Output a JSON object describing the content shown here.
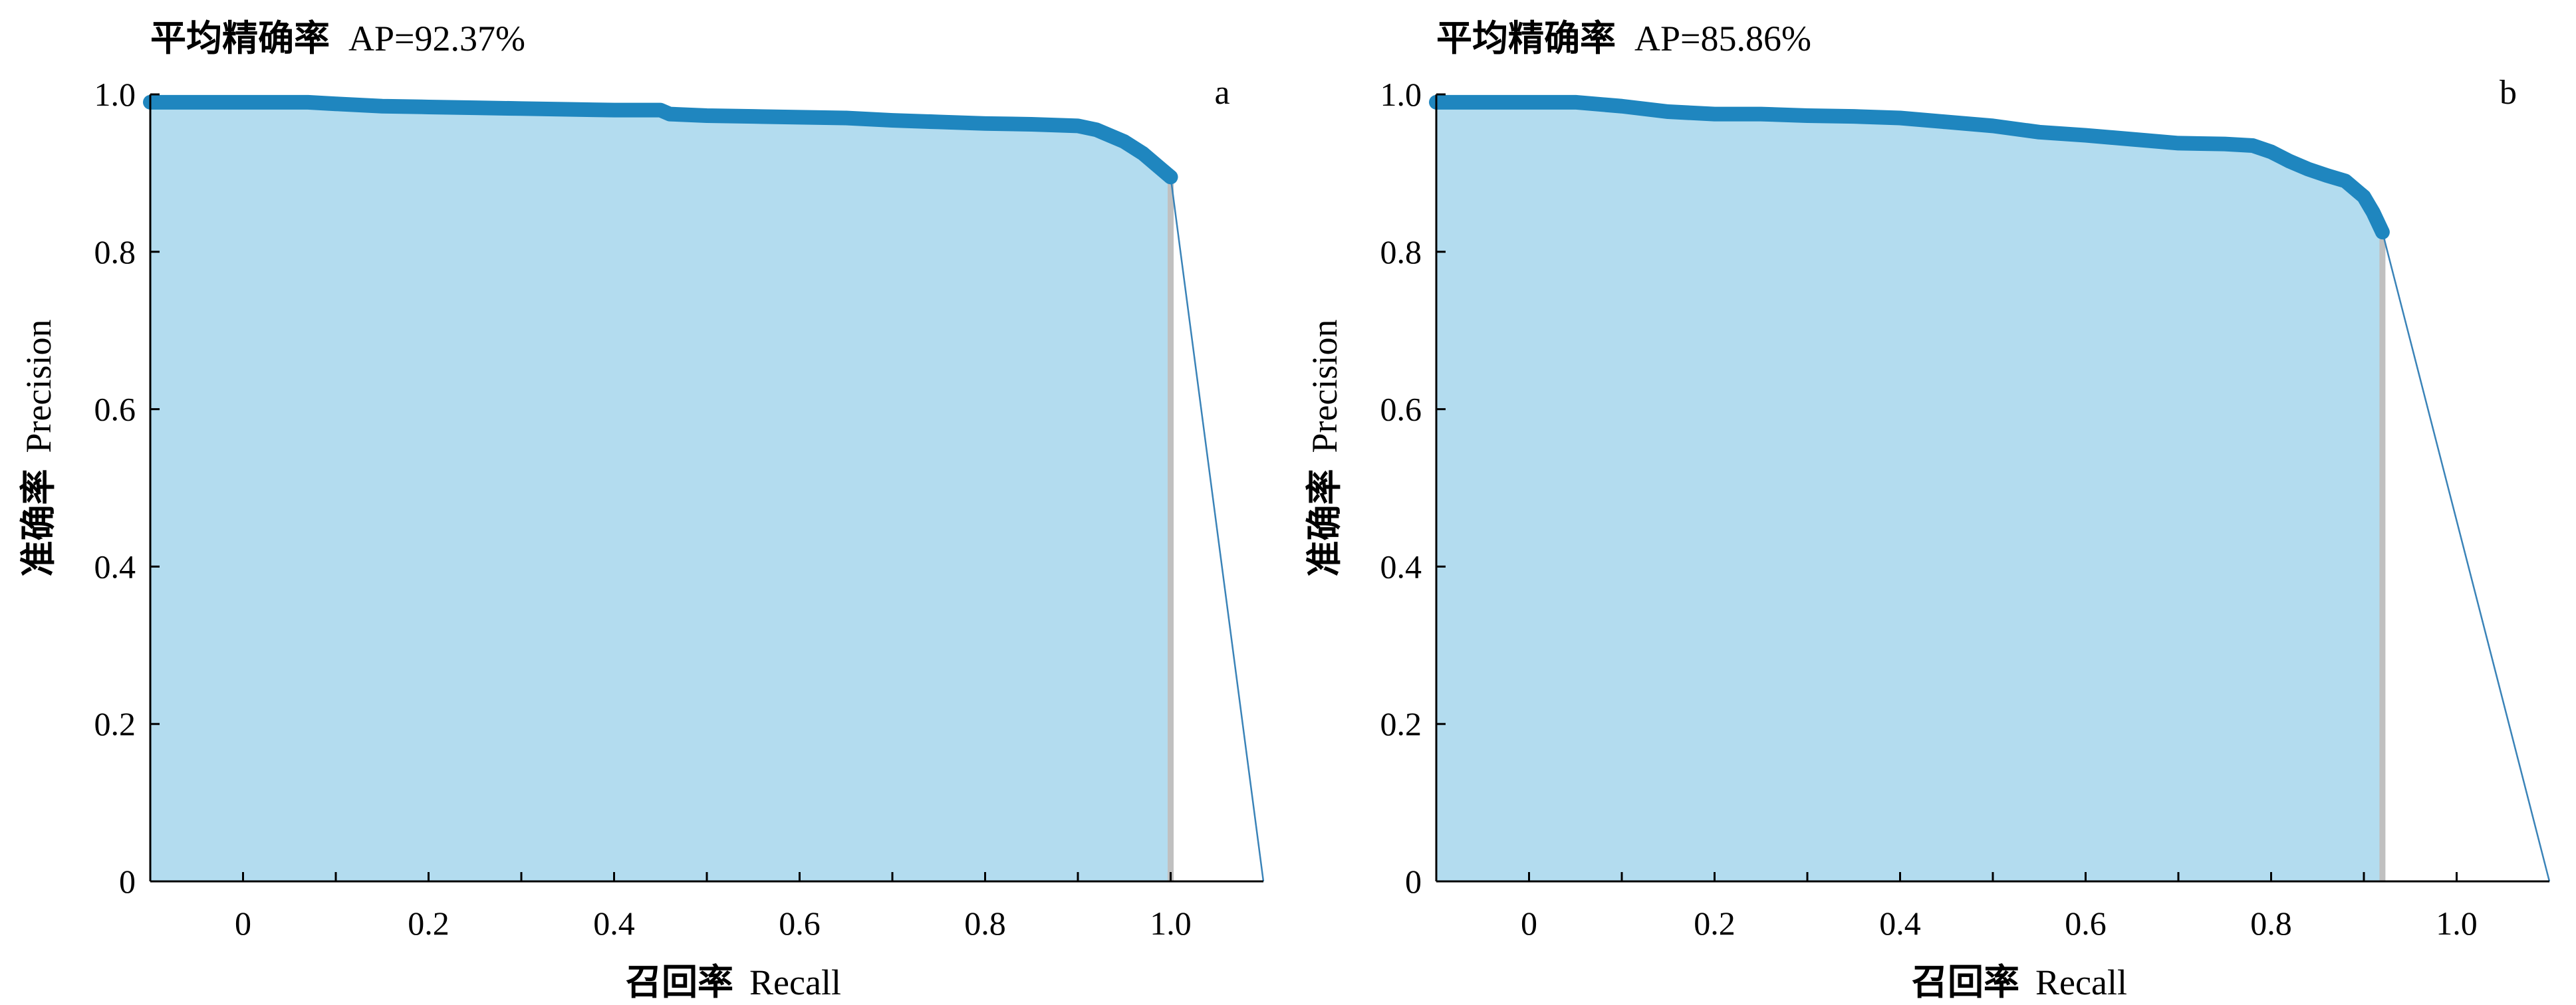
{
  "colors": {
    "curve": "#1f86bf",
    "fill": "#b3dcef",
    "drop_line": "#c0c0c0",
    "connector": "#3a83b8"
  },
  "chart_data": [
    {
      "type": "area",
      "title_cn": "平均精确率",
      "title_value": "AP=92.37%",
      "panel_label": "a",
      "xlabel_cn": "召回率",
      "xlabel_en": "Recall",
      "ylabel_cn": "准确率",
      "ylabel_en": "Precision",
      "xlim": [
        -0.1,
        1.1
      ],
      "ylim": [
        0,
        1.0
      ],
      "xticks": [
        0,
        0.2,
        0.4,
        0.6,
        0.8,
        1.0
      ],
      "xtick_labels": [
        "0",
        "0.2",
        "0.4",
        "0.6",
        "0.8",
        "1.0"
      ],
      "yticks": [
        0,
        0.2,
        0.4,
        0.6,
        0.8,
        1.0
      ],
      "ytick_labels": [
        "0",
        "0.2",
        "0.4",
        "0.6",
        "0.8",
        "1.0"
      ],
      "grid": false,
      "pr_curve": {
        "x": [
          -0.1,
          0.0,
          0.05,
          0.07,
          0.1,
          0.15,
          0.2,
          0.25,
          0.3,
          0.35,
          0.4,
          0.45,
          0.46,
          0.5,
          0.55,
          0.6,
          0.65,
          0.7,
          0.75,
          0.8,
          0.85,
          0.9,
          0.92,
          0.95,
          0.97,
          0.98,
          0.99,
          1.0
        ],
        "y": [
          0.99,
          0.99,
          0.99,
          0.99,
          0.988,
          0.985,
          0.984,
          0.983,
          0.982,
          0.981,
          0.98,
          0.98,
          0.975,
          0.973,
          0.972,
          0.971,
          0.97,
          0.967,
          0.965,
          0.963,
          0.962,
          0.96,
          0.955,
          0.94,
          0.925,
          0.915,
          0.905,
          0.895
        ]
      },
      "drop_x": 1.0,
      "connector": {
        "x": [
          1.0,
          1.1
        ],
        "y": [
          0.895,
          0.0
        ]
      }
    },
    {
      "type": "area",
      "title_cn": "平均精确率",
      "title_value": "AP=85.86%",
      "panel_label": "b",
      "xlabel_cn": "召回率",
      "xlabel_en": "Recall",
      "ylabel_cn": "准确率",
      "ylabel_en": "Precision",
      "xlim": [
        -0.1,
        1.1
      ],
      "ylim": [
        0,
        1.0
      ],
      "xticks": [
        0,
        0.2,
        0.4,
        0.6,
        0.8,
        1.0
      ],
      "xtick_labels": [
        "0",
        "0.2",
        "0.4",
        "0.6",
        "0.8",
        "1.0"
      ],
      "yticks": [
        0,
        0.2,
        0.4,
        0.6,
        0.8,
        1.0
      ],
      "ytick_labels": [
        "0",
        "0.2",
        "0.4",
        "0.6",
        "0.8",
        "1.0"
      ],
      "grid": false,
      "pr_curve": {
        "x": [
          -0.1,
          0.0,
          0.05,
          0.1,
          0.15,
          0.2,
          0.25,
          0.3,
          0.35,
          0.4,
          0.45,
          0.5,
          0.55,
          0.6,
          0.65,
          0.7,
          0.75,
          0.78,
          0.8,
          0.82,
          0.84,
          0.86,
          0.88,
          0.9,
          0.91,
          0.92
        ],
        "y": [
          0.99,
          0.99,
          0.99,
          0.985,
          0.978,
          0.975,
          0.975,
          0.973,
          0.972,
          0.97,
          0.965,
          0.96,
          0.952,
          0.948,
          0.943,
          0.938,
          0.937,
          0.935,
          0.927,
          0.915,
          0.905,
          0.897,
          0.89,
          0.87,
          0.85,
          0.825
        ]
      },
      "drop_x": 0.92,
      "connector": {
        "x": [
          0.92,
          1.1
        ],
        "y": [
          0.825,
          0.0
        ]
      }
    }
  ]
}
